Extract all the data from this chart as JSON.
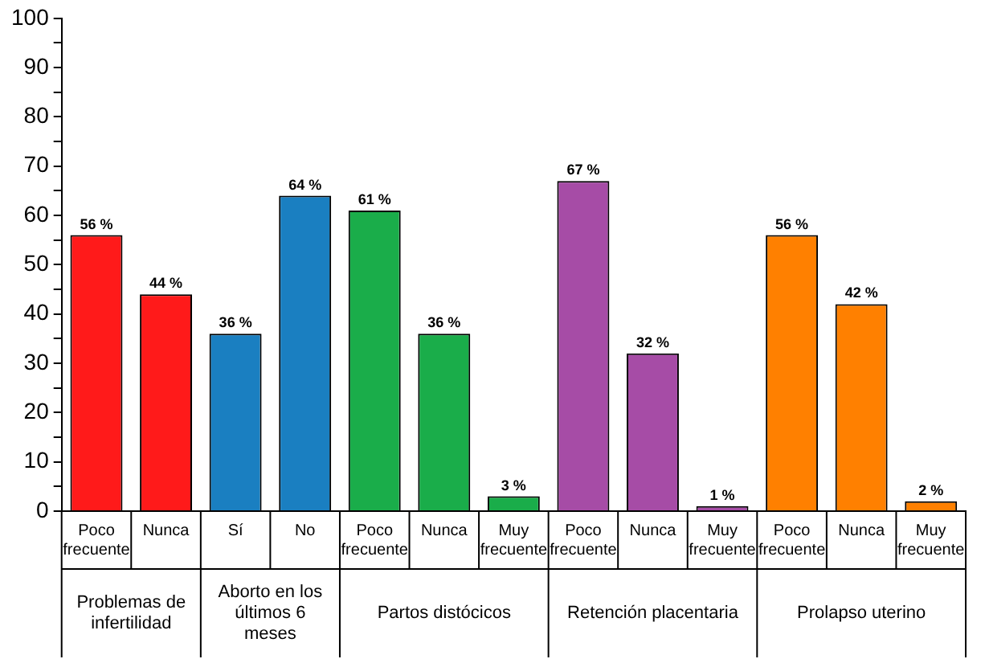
{
  "chart_data": {
    "type": "bar",
    "categories": [
      "Poco frecuente",
      "Nunca",
      "Sí",
      "No",
      "Poco frecuente",
      "Nunca",
      "Muy frecuente",
      "Poco frecuente",
      "Nunca",
      "Muy frecuente",
      "Poco frecuente",
      "Nunca",
      "Muy frecuente"
    ],
    "values": [
      56,
      44,
      36,
      64,
      61,
      36,
      3,
      67,
      32,
      1,
      56,
      42,
      2
    ],
    "colors": [
      "#ff1a1a",
      "#ff1a1a",
      "#1a7fc1",
      "#1a7fc1",
      "#1aad4a",
      "#1aad4a",
      "#1aad4a",
      "#a64ca6",
      "#a64ca6",
      "#a64ca6",
      "#ff8000",
      "#ff8000",
      "#ff8000"
    ],
    "value_labels": [
      "56 %",
      "44 %",
      "36 %",
      "64 %",
      "61 %",
      "36 %",
      "3 %",
      "67 %",
      "32 %",
      "1 %",
      "56 %",
      "42 %",
      "2 %"
    ],
    "annotations": [
      "Problemas de infertilidad",
      "Aborto en los últimos 6 meses",
      "Partos distócicos",
      "Retención placentaria",
      "Prolapso uterino"
    ],
    "ylim": [
      0,
      100
    ],
    "yticks": [
      0,
      {
        "value": 5,
        "label": null
      },
      10,
      {
        "value": 15,
        "label": null
      },
      20,
      {
        "value": 25,
        "label": null
      },
      30,
      {
        "value": 35,
        "label": null
      },
      40,
      {
        "value": 45,
        "label": null
      },
      50,
      {
        "value": 55,
        "label": null
      },
      60,
      {
        "value": 65,
        "label": null
      },
      70,
      {
        "value": 75,
        "label": null
      },
      80,
      {
        "value": 85,
        "label": null
      },
      90,
      {
        "value": 95,
        "label": null
      },
      100
    ],
    "grid": false,
    "legend": false
  }
}
